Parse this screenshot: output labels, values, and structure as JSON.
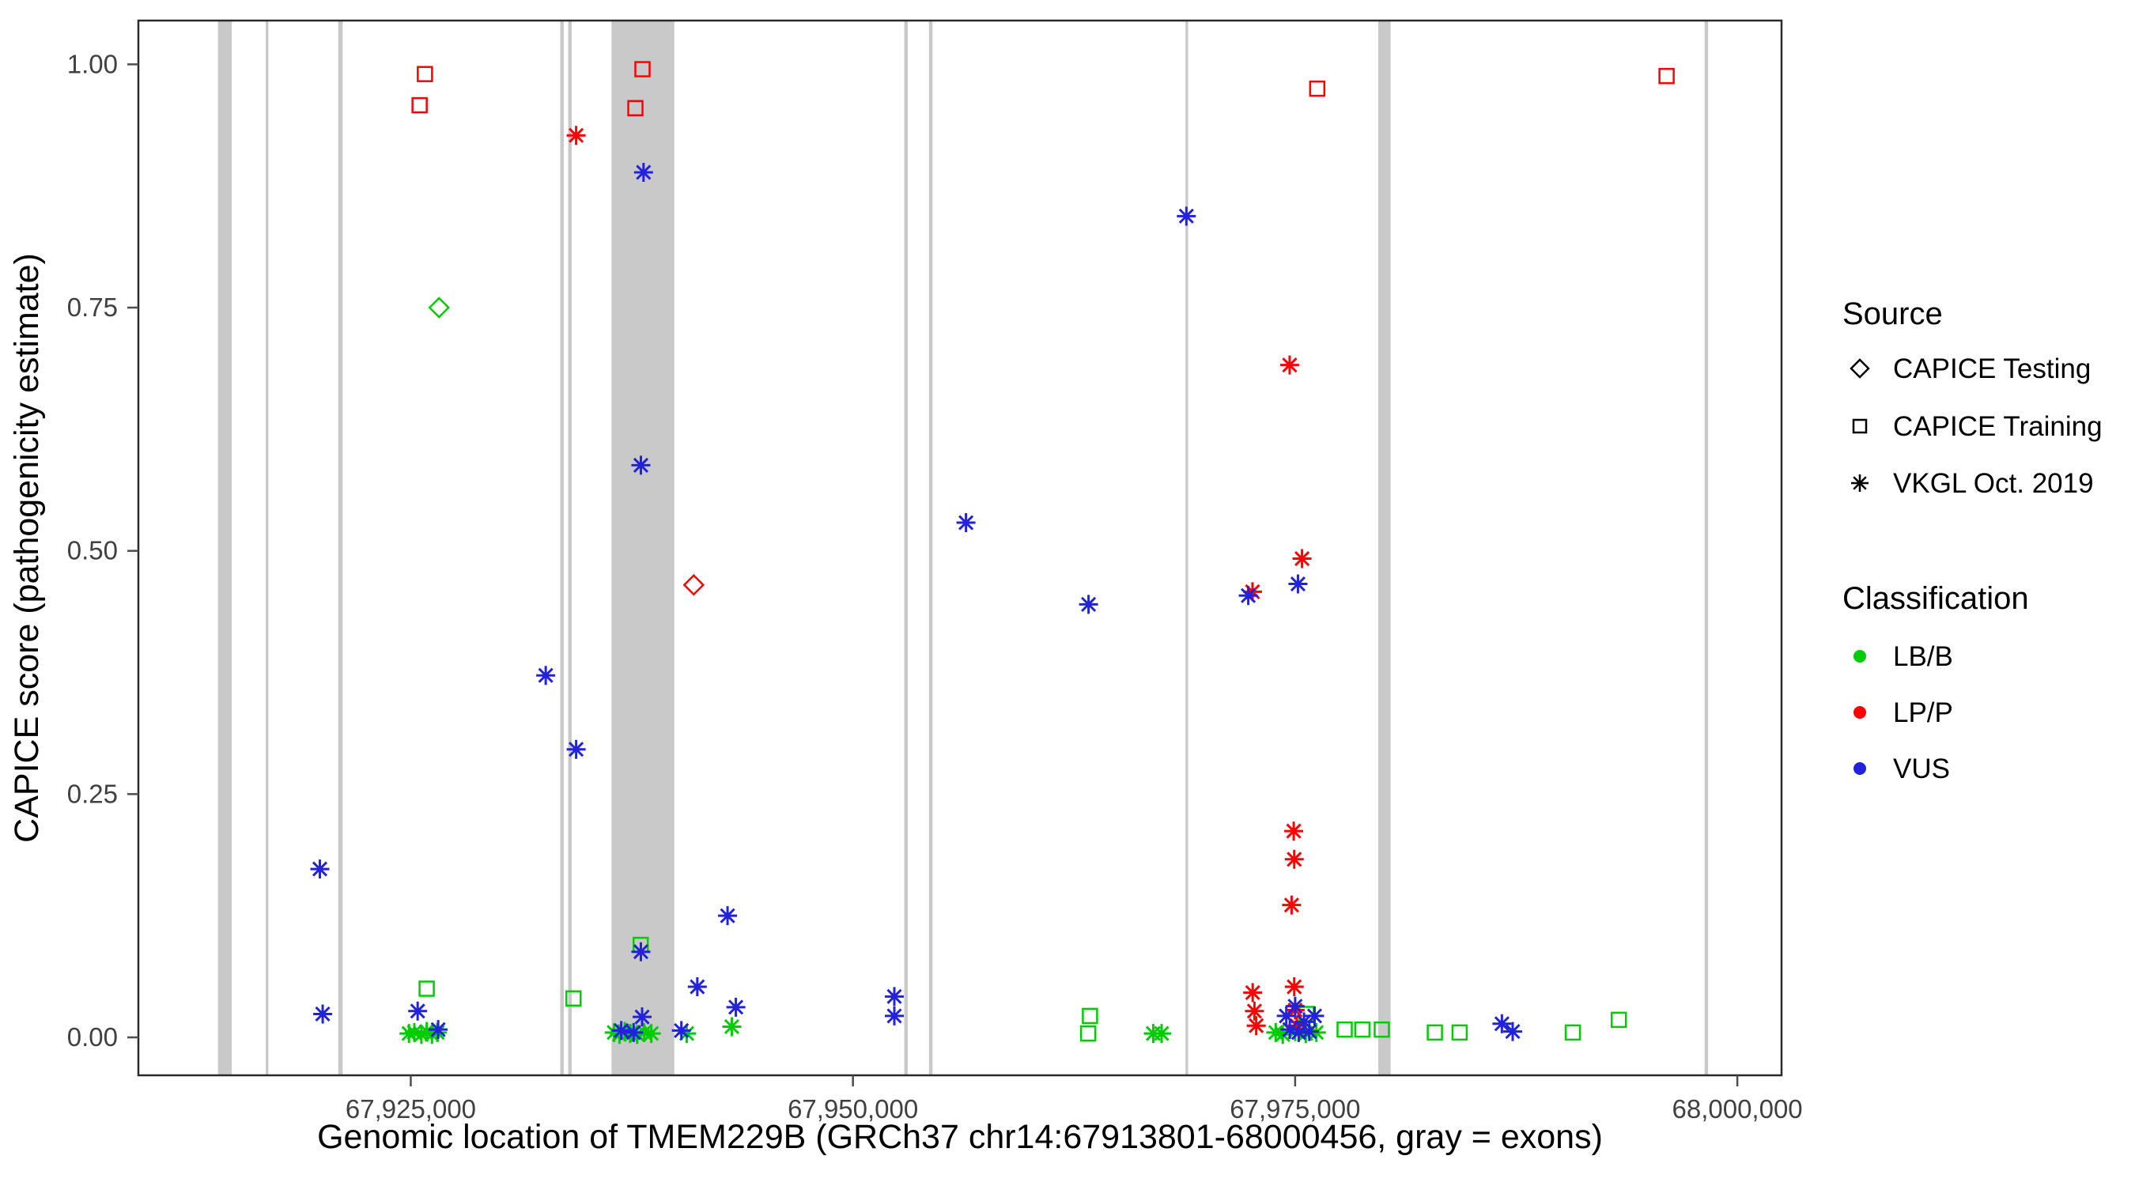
{
  "chart_data": {
    "type": "scatter",
    "xlabel": "Genomic location of TMEM229B (GRCh37 chr14:67913801-68000456, gray = exons)",
    "ylabel": "CAPICE score (pathogenicity estimate)",
    "xlim": [
      67909600,
      68002500
    ],
    "ylim": [
      -0.039,
      1.045
    ],
    "x_ticks": [
      {
        "value": 67925000,
        "label": "67,925,000"
      },
      {
        "value": 67950000,
        "label": "67,950,000"
      },
      {
        "value": 67975000,
        "label": "67,975,000"
      },
      {
        "value": 68000000,
        "label": "68,000,000"
      }
    ],
    "y_ticks": [
      {
        "value": 0.0,
        "label": "0.00"
      },
      {
        "value": 0.25,
        "label": "0.25"
      },
      {
        "value": 0.5,
        "label": "0.50"
      },
      {
        "value": 0.75,
        "label": "0.75"
      },
      {
        "value": 1.0,
        "label": "1.00"
      }
    ],
    "colors": {
      "exon": "#c9c9c9",
      "lbb": "#00cc00",
      "lpp": "#ff0000",
      "vus": "#2222dd"
    },
    "exons": [
      [
        67914100,
        67914880
      ],
      [
        67916800,
        67916950
      ],
      [
        67920900,
        67921150
      ],
      [
        67933450,
        67933650
      ],
      [
        67933900,
        67934100
      ],
      [
        67936350,
        67939900
      ],
      [
        67952900,
        67953100
      ],
      [
        67954300,
        67954500
      ],
      [
        67968800,
        67968950
      ],
      [
        67979700,
        67980400
      ],
      [
        67998150,
        67998350
      ]
    ],
    "series": [
      {
        "source": "CAPICE Testing",
        "classification": "LB/B",
        "shape": "diamond",
        "color": "#00cc00",
        "points": [
          [
            67926600,
            0.75
          ]
        ]
      },
      {
        "source": "CAPICE Testing",
        "classification": "LP/P",
        "shape": "diamond",
        "color": "#ff0000",
        "points": [
          [
            67941000,
            0.465
          ]
        ]
      },
      {
        "source": "CAPICE Training",
        "classification": "LB/B",
        "shape": "square",
        "color": "#00cc00",
        "points": [
          [
            67925900,
            0.05
          ],
          [
            67934200,
            0.04
          ],
          [
            67938000,
            0.095
          ],
          [
            67963400,
            0.022
          ],
          [
            67963300,
            0.004
          ],
          [
            67975650,
            0.024
          ],
          [
            67977800,
            0.008
          ],
          [
            67978800,
            0.008
          ],
          [
            67979900,
            0.008
          ],
          [
            67982900,
            0.005
          ],
          [
            67984300,
            0.005
          ],
          [
            67990700,
            0.005
          ],
          [
            67993300,
            0.018
          ]
        ]
      },
      {
        "source": "CAPICE Training",
        "classification": "LP/P",
        "shape": "square",
        "color": "#ff0000",
        "points": [
          [
            67925500,
            0.958
          ],
          [
            67925800,
            0.99
          ],
          [
            67937700,
            0.955
          ],
          [
            67938100,
            0.995
          ],
          [
            67976250,
            0.975
          ],
          [
            67996000,
            0.988
          ]
        ]
      },
      {
        "source": "VKGL Oct. 2019",
        "classification": "LB/B",
        "shape": "asterisk",
        "color": "#00cc00",
        "points": [
          [
            67924900,
            0.004
          ],
          [
            67925200,
            0.005
          ],
          [
            67925600,
            0.003
          ],
          [
            67925900,
            0.006
          ],
          [
            67926200,
            0.003
          ],
          [
            67926500,
            0.005
          ],
          [
            67936500,
            0.005
          ],
          [
            67936800,
            0.003
          ],
          [
            67937100,
            0.006
          ],
          [
            67937400,
            0.004
          ],
          [
            67937800,
            0.003
          ],
          [
            67938200,
            0.005
          ],
          [
            67938600,
            0.004
          ],
          [
            67940600,
            0.004
          ],
          [
            67943150,
            0.011
          ],
          [
            67966980,
            0.004
          ],
          [
            67967450,
            0.004
          ],
          [
            67973900,
            0.005
          ],
          [
            67974300,
            0.003
          ],
          [
            67975000,
            0.006
          ],
          [
            67975600,
            0.004
          ],
          [
            67976200,
            0.005
          ]
        ]
      },
      {
        "source": "VKGL Oct. 2019",
        "classification": "LP/P",
        "shape": "asterisk",
        "color": "#ff0000",
        "points": [
          [
            67934350,
            0.927
          ],
          [
            67974690,
            0.691
          ],
          [
            67975390,
            0.492
          ],
          [
            67972590,
            0.458
          ],
          [
            67974920,
            0.212
          ],
          [
            67974950,
            0.183
          ],
          [
            67974800,
            0.136
          ],
          [
            67974950,
            0.052
          ],
          [
            67972600,
            0.046
          ],
          [
            67975000,
            0.028
          ],
          [
            67972700,
            0.027
          ],
          [
            67975100,
            0.012
          ],
          [
            67972800,
            0.012
          ]
        ]
      },
      {
        "source": "VKGL Oct. 2019",
        "classification": "VUS",
        "shape": "asterisk",
        "color": "#2222dd",
        "points": [
          [
            67919860,
            0.173
          ],
          [
            67920020,
            0.024
          ],
          [
            67925390,
            0.027
          ],
          [
            67926550,
            0.008
          ],
          [
            67932630,
            0.372
          ],
          [
            67934350,
            0.296
          ],
          [
            67938160,
            0.889
          ],
          [
            67938010,
            0.588
          ],
          [
            67938010,
            0.088
          ],
          [
            67938080,
            0.021
          ],
          [
            67936900,
            0.007
          ],
          [
            67937600,
            0.005
          ],
          [
            67941200,
            0.052
          ],
          [
            67940300,
            0.007
          ],
          [
            67942910,
            0.125
          ],
          [
            67943380,
            0.031
          ],
          [
            67952340,
            0.042
          ],
          [
            67952340,
            0.022
          ],
          [
            67956390,
            0.529
          ],
          [
            67963320,
            0.445
          ],
          [
            67968850,
            0.844
          ],
          [
            67972350,
            0.454
          ],
          [
            67975160,
            0.466
          ],
          [
            67974500,
            0.022
          ],
          [
            67974700,
            0.008
          ],
          [
            67975000,
            0.032
          ],
          [
            67975200,
            0.005
          ],
          [
            67975500,
            0.016
          ],
          [
            67975800,
            0.006
          ],
          [
            67976100,
            0.022
          ],
          [
            67986690,
            0.014
          ],
          [
            67987300,
            0.006
          ]
        ]
      }
    ],
    "legend": {
      "source": {
        "title": "Source",
        "items": [
          {
            "label": "CAPICE Testing",
            "shape": "diamond"
          },
          {
            "label": "CAPICE Training",
            "shape": "square"
          },
          {
            "label": "VKGL Oct. 2019",
            "shape": "asterisk"
          }
        ]
      },
      "classification": {
        "title": "Classification",
        "items": [
          {
            "label": "LB/B",
            "color": "#00cc00"
          },
          {
            "label": "LP/P",
            "color": "#ff0000"
          },
          {
            "label": "VUS",
            "color": "#2222dd"
          }
        ]
      }
    }
  }
}
